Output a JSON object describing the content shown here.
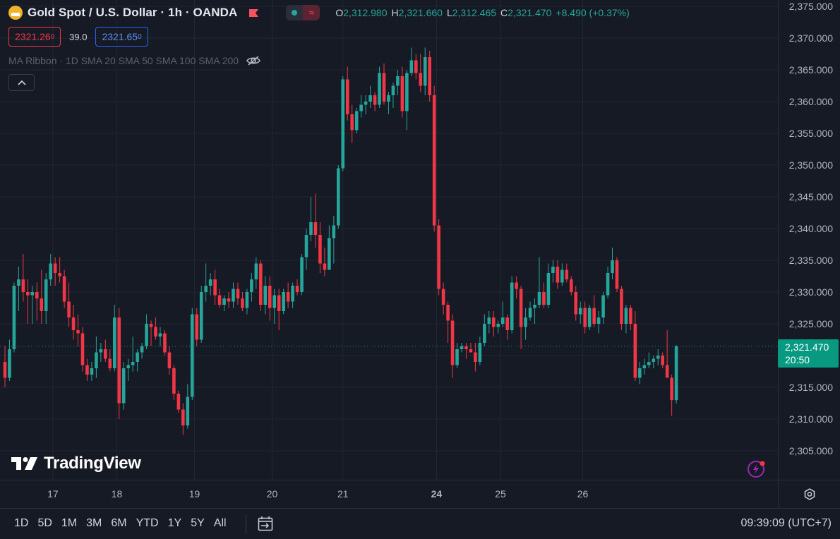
{
  "header": {
    "title": "Gold Spot / U.S. Dollar · 1h · OANDA",
    "ohlc": [
      {
        "key": "O",
        "value": "2,312.980"
      },
      {
        "key": "H",
        "value": "2,321.660"
      },
      {
        "key": "L",
        "value": "2,312.465"
      },
      {
        "key": "C",
        "value": "2,321.470"
      }
    ],
    "change": "+8.490 (+0.37%)",
    "sell_price": "2321.26",
    "sell_price_main": "2321.26",
    "sell_price_sup": "0",
    "spread": "39.0",
    "buy_price": "2321.65",
    "buy_price_main": "2321.65",
    "buy_price_sup": "0",
    "indicator": "MA Ribbon · 1D SMA 20 SMA 50 SMA 100 SMA 200"
  },
  "colors": {
    "background": "#161a25",
    "up": "#26a69a",
    "down": "#f23645",
    "grid": "#232733",
    "last_price_label": "#089981"
  },
  "last_price": {
    "price": "2,321.470",
    "countdown": "20:50"
  },
  "watermark": "TradingView",
  "bottom_bar": {
    "ranges": [
      "1D",
      "5D",
      "1M",
      "3M",
      "6M",
      "YTD",
      "1Y",
      "5Y",
      "All"
    ],
    "clock": "09:39:09 (UTC+7)"
  },
  "icons": {
    "logo": "gold-coin-icon",
    "flag": "flag-icon",
    "eye": "eye-hidden-icon",
    "collapse": "chevron-up-icon",
    "bolt": "lightning-icon",
    "settings": "settings-icon",
    "goto": "go-to-date-icon"
  },
  "chart_data": {
    "type": "candlestick",
    "symbol": "XAUUSD",
    "interval": "1h",
    "ylim": [
      2302,
      2376
    ],
    "y_ticks": [
      "2,375.000",
      "2,370.000",
      "2,365.000",
      "2,360.000",
      "2,355.000",
      "2,350.000",
      "2,345.000",
      "2,340.000",
      "2,335.000",
      "2,330.000",
      "2,325.000",
      "2,320.000",
      "2,315.000",
      "2,310.000",
      "2,305.000"
    ],
    "x_ticks": [
      {
        "label": "17",
        "index": 10.5
      },
      {
        "label": "18",
        "index": 24.5
      },
      {
        "label": "19",
        "index": 41.5
      },
      {
        "label": "20",
        "index": 58.5
      },
      {
        "label": "21",
        "index": 74
      },
      {
        "label": "24",
        "index": 94.5
      },
      {
        "label": "25",
        "index": 108.5
      },
      {
        "label": "26",
        "index": 126.5
      }
    ],
    "candles": [
      [
        2319.0,
        2321.5,
        2315.0,
        2316.5
      ],
      [
        2316.5,
        2322.5,
        2316.0,
        2321.0
      ],
      [
        2321.0,
        2331.5,
        2320.5,
        2331.0
      ],
      [
        2331.0,
        2334.0,
        2327.0,
        2332.0
      ],
      [
        2332.0,
        2336.0,
        2328.5,
        2330.0
      ],
      [
        2330.0,
        2332.0,
        2325.0,
        2329.5
      ],
      [
        2329.5,
        2331.0,
        2325.0,
        2330.0
      ],
      [
        2330.0,
        2331.5,
        2325.5,
        2329.0
      ],
      [
        2329.0,
        2333.5,
        2325.0,
        2327.0
      ],
      [
        2327.0,
        2333.0,
        2325.0,
        2332.0
      ],
      [
        2332.0,
        2336.0,
        2331.0,
        2334.5
      ],
      [
        2334.5,
        2335.5,
        2331.0,
        2333.0
      ],
      [
        2333.0,
        2335.5,
        2331.5,
        2332.5
      ],
      [
        2332.5,
        2333.5,
        2327.5,
        2328.5
      ],
      [
        2328.5,
        2331.5,
        2324.5,
        2326.0
      ],
      [
        2326.0,
        2328.0,
        2322.5,
        2324.0
      ],
      [
        2324.0,
        2326.5,
        2321.5,
        2323.5
      ],
      [
        2323.5,
        2324.5,
        2317.5,
        2318.5
      ],
      [
        2318.5,
        2319.5,
        2316.0,
        2317.0
      ],
      [
        2317.0,
        2319.0,
        2316.0,
        2318.0
      ],
      [
        2318.0,
        2323.0,
        2316.5,
        2320.5
      ],
      [
        2320.5,
        2322.0,
        2319.0,
        2321.0
      ],
      [
        2321.0,
        2322.5,
        2319.0,
        2319.5
      ],
      [
        2319.5,
        2321.0,
        2317.5,
        2318.0
      ],
      [
        2318.0,
        2328.0,
        2317.5,
        2326.0
      ],
      [
        2326.0,
        2327.5,
        2310.0,
        2312.5
      ],
      [
        2312.5,
        2319.0,
        2311.5,
        2318.0
      ],
      [
        2318.0,
        2319.5,
        2316.0,
        2318.5
      ],
      [
        2318.5,
        2323.0,
        2317.5,
        2319.0
      ],
      [
        2319.0,
        2321.0,
        2317.5,
        2320.5
      ],
      [
        2320.5,
        2322.0,
        2319.5,
        2321.5
      ],
      [
        2321.5,
        2326.5,
        2321.0,
        2325.0
      ],
      [
        2325.0,
        2325.5,
        2321.5,
        2324.5
      ],
      [
        2324.5,
        2326.0,
        2322.5,
        2323.0
      ],
      [
        2323.0,
        2324.5,
        2321.5,
        2323.5
      ],
      [
        2323.5,
        2324.0,
        2320.0,
        2320.5
      ],
      [
        2320.5,
        2321.5,
        2317.0,
        2318.0
      ],
      [
        2318.0,
        2318.5,
        2313.0,
        2314.0
      ],
      [
        2314.0,
        2314.5,
        2311.0,
        2311.5
      ],
      [
        2311.5,
        2312.5,
        2307.5,
        2309.0
      ],
      [
        2309.0,
        2315.5,
        2308.5,
        2313.5
      ],
      [
        2313.5,
        2327.5,
        2313.0,
        2326.5
      ],
      [
        2326.5,
        2327.5,
        2321.5,
        2322.5
      ],
      [
        2322.5,
        2331.0,
        2322.0,
        2330.0
      ],
      [
        2330.0,
        2334.5,
        2328.5,
        2331.0
      ],
      [
        2331.0,
        2333.0,
        2329.5,
        2332.0
      ],
      [
        2332.0,
        2333.5,
        2328.0,
        2329.5
      ],
      [
        2329.5,
        2330.5,
        2327.5,
        2328.0
      ],
      [
        2328.0,
        2329.5,
        2327.0,
        2329.0
      ],
      [
        2329.0,
        2330.0,
        2327.5,
        2328.5
      ],
      [
        2328.5,
        2331.5,
        2327.5,
        2330.5
      ],
      [
        2330.5,
        2331.5,
        2328.0,
        2329.0
      ],
      [
        2329.0,
        2330.0,
        2327.0,
        2327.5
      ],
      [
        2327.5,
        2330.5,
        2326.5,
        2330.0
      ],
      [
        2330.0,
        2333.0,
        2328.5,
        2332.0
      ],
      [
        2332.0,
        2335.5,
        2330.5,
        2334.5
      ],
      [
        2334.5,
        2335.0,
        2327.0,
        2328.0
      ],
      [
        2328.0,
        2332.5,
        2326.5,
        2331.0
      ],
      [
        2331.0,
        2332.5,
        2325.5,
        2327.5
      ],
      [
        2327.5,
        2330.5,
        2325.0,
        2329.5
      ],
      [
        2329.5,
        2330.5,
        2324.0,
        2327.0
      ],
      [
        2327.0,
        2330.5,
        2326.5,
        2330.0
      ],
      [
        2330.0,
        2331.5,
        2327.5,
        2328.5
      ],
      [
        2328.5,
        2331.5,
        2327.5,
        2331.0
      ],
      [
        2331.0,
        2332.0,
        2329.5,
        2330.0
      ],
      [
        2330.0,
        2336.0,
        2329.5,
        2335.5
      ],
      [
        2335.5,
        2340.0,
        2333.5,
        2339.0
      ],
      [
        2339.0,
        2345.0,
        2338.0,
        2341.0
      ],
      [
        2341.0,
        2345.5,
        2337.0,
        2339.0
      ],
      [
        2339.0,
        2341.0,
        2333.0,
        2334.5
      ],
      [
        2334.5,
        2337.0,
        2332.5,
        2333.5
      ],
      [
        2333.5,
        2340.5,
        2333.5,
        2338.5
      ],
      [
        2338.5,
        2342.0,
        2334.5,
        2340.5
      ],
      [
        2340.5,
        2350.0,
        2340.0,
        2349.5
      ],
      [
        2349.5,
        2364.0,
        2349.0,
        2363.5
      ],
      [
        2363.5,
        2365.5,
        2357.0,
        2358.0
      ],
      [
        2358.0,
        2359.5,
        2353.5,
        2355.5
      ],
      [
        2355.5,
        2359.0,
        2355.0,
        2358.5
      ],
      [
        2358.5,
        2361.0,
        2357.5,
        2359.5
      ],
      [
        2359.5,
        2361.0,
        2358.0,
        2360.0
      ],
      [
        2360.0,
        2362.5,
        2359.0,
        2361.0
      ],
      [
        2361.0,
        2361.5,
        2358.5,
        2359.5
      ],
      [
        2359.5,
        2365.5,
        2359.0,
        2364.5
      ],
      [
        2364.5,
        2366.0,
        2359.5,
        2360.0
      ],
      [
        2360.0,
        2361.5,
        2358.0,
        2361.0
      ],
      [
        2361.0,
        2363.0,
        2359.0,
        2362.5
      ],
      [
        2362.5,
        2365.0,
        2361.0,
        2364.0
      ],
      [
        2364.0,
        2365.5,
        2357.5,
        2358.5
      ],
      [
        2358.5,
        2365.0,
        2355.5,
        2364.5
      ],
      [
        2364.5,
        2368.5,
        2364.0,
        2366.5
      ],
      [
        2366.5,
        2367.5,
        2363.5,
        2364.5
      ],
      [
        2364.5,
        2367.5,
        2361.5,
        2362.5
      ],
      [
        2362.5,
        2368.5,
        2361.0,
        2367.0
      ],
      [
        2367.0,
        2368.0,
        2360.0,
        2361.0
      ],
      [
        2361.0,
        2362.5,
        2339.5,
        2340.5
      ],
      [
        2340.5,
        2341.5,
        2329.5,
        2330.5
      ],
      [
        2330.5,
        2331.5,
        2326.5,
        2328.0
      ],
      [
        2328.0,
        2328.5,
        2322.0,
        2325.5
      ],
      [
        2325.5,
        2326.5,
        2316.5,
        2318.5
      ],
      [
        2318.5,
        2322.0,
        2318.0,
        2321.0
      ],
      [
        2321.0,
        2322.0,
        2320.5,
        2321.5
      ],
      [
        2321.5,
        2322.0,
        2319.5,
        2321.0
      ],
      [
        2321.0,
        2322.0,
        2320.5,
        2320.5
      ],
      [
        2320.5,
        2322.0,
        2317.5,
        2319.0
      ],
      [
        2319.0,
        2323.0,
        2318.5,
        2322.0
      ],
      [
        2322.0,
        2326.5,
        2321.5,
        2325.0
      ],
      [
        2325.0,
        2327.0,
        2323.5,
        2326.0
      ],
      [
        2326.0,
        2327.0,
        2323.0,
        2324.5
      ],
      [
        2324.5,
        2325.5,
        2323.5,
        2325.0
      ],
      [
        2325.0,
        2328.5,
        2324.5,
        2326.0
      ],
      [
        2326.0,
        2326.5,
        2322.5,
        2324.0
      ],
      [
        2324.0,
        2332.5,
        2323.5,
        2331.5
      ],
      [
        2331.5,
        2332.5,
        2329.0,
        2330.5
      ],
      [
        2330.5,
        2331.0,
        2321.0,
        2324.5
      ],
      [
        2324.5,
        2327.5,
        2322.5,
        2326.0
      ],
      [
        2326.0,
        2328.5,
        2325.5,
        2327.5
      ],
      [
        2327.5,
        2329.0,
        2325.0,
        2328.0
      ],
      [
        2328.0,
        2335.5,
        2327.5,
        2330.0
      ],
      [
        2330.0,
        2331.5,
        2327.5,
        2328.0
      ],
      [
        2328.0,
        2334.5,
        2327.5,
        2333.0
      ],
      [
        2333.0,
        2335.0,
        2331.5,
        2334.0
      ]
    ],
    "candles_part2": [
      [
        2334.0,
        2335.0,
        2330.5,
        2331.5
      ],
      [
        2331.5,
        2334.5,
        2331.0,
        2333.5
      ],
      [
        2333.5,
        2334.5,
        2331.5,
        2332.0
      ],
      [
        2332.0,
        2332.5,
        2329.5,
        2330.0
      ],
      [
        2330.0,
        2331.0,
        2325.5,
        2326.5
      ],
      [
        2326.5,
        2328.5,
        2325.0,
        2327.5
      ],
      [
        2327.5,
        2328.5,
        2323.5,
        2324.5
      ],
      [
        2324.5,
        2328.0,
        2324.0,
        2327.5
      ],
      [
        2327.5,
        2329.5,
        2324.5,
        2325.0
      ],
      [
        2325.0,
        2327.0,
        2323.5,
        2326.0
      ],
      [
        2326.0,
        2330.0,
        2325.0,
        2329.5
      ],
      [
        2329.5,
        2334.0,
        2329.0,
        2333.0
      ],
      [
        2333.0,
        2337.0,
        2332.0,
        2335.0
      ],
      [
        2335.0,
        2335.5,
        2330.0,
        2330.5
      ],
      [
        2330.5,
        2331.0,
        2324.0,
        2325.0
      ],
      [
        2325.0,
        2328.0,
        2323.5,
        2327.5
      ],
      [
        2327.5,
        2328.0,
        2324.0,
        2325.0
      ],
      [
        2325.0,
        2327.0,
        2316.0,
        2316.5
      ],
      [
        2316.5,
        2319.0,
        2315.5,
        2318.0
      ],
      [
        2318.0,
        2319.5,
        2317.0,
        2318.5
      ],
      [
        2318.5,
        2320.5,
        2318.0,
        2319.0
      ],
      [
        2319.0,
        2320.0,
        2318.0,
        2319.5
      ],
      [
        2319.5,
        2321.0,
        2318.5,
        2320.0
      ],
      [
        2320.0,
        2320.5,
        2318.0,
        2318.5
      ],
      [
        2318.5,
        2324.0,
        2316.5,
        2316.5
      ],
      [
        2316.5,
        2317.0,
        2310.5,
        2312.98
      ],
      [
        2312.98,
        2321.66,
        2312.465,
        2321.47
      ]
    ]
  }
}
